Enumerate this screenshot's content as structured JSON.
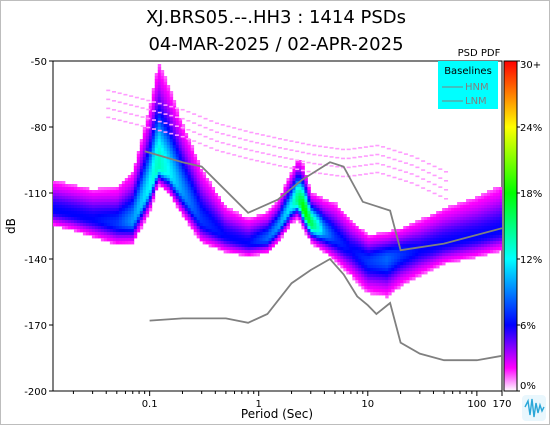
{
  "title_line1": "XJ.BRS05.--.HH3 : 1414 PSDs",
  "title_line2": "04-MAR-2025 / 02-APR-2025",
  "chart_data": {
    "type": "heatmap",
    "xlabel": "Period (Sec)",
    "ylabel": "dB",
    "x_scale": "log",
    "xlim": [
      0.013,
      170
    ],
    "ylim": [
      -200,
      -50
    ],
    "x_ticks": [
      "0.1",
      "1",
      "10",
      "100",
      "170"
    ],
    "x_tick_values": [
      0.1,
      1,
      10,
      100,
      170
    ],
    "y_ticks": [
      "-50",
      "-80",
      "-110",
      "-140",
      "-170",
      "-200"
    ],
    "y_tick_values": [
      -50,
      -80,
      -110,
      -140,
      -170,
      -200
    ],
    "grid": false,
    "colorbar": {
      "title": "PSD PDF",
      "tick_labels": [
        "30+",
        "24%",
        "18%",
        "12%",
        "6%",
        "0%"
      ],
      "tick_values": [
        30,
        24,
        18,
        12,
        6,
        0
      ],
      "colors": [
        "#ff0000",
        "#ff7f00",
        "#ffff00",
        "#00ff00",
        "#00ffff",
        "#0000ff",
        "#ff00ff",
        "#ffffff"
      ]
    },
    "legend": {
      "title": "Baselines",
      "position": "top-right",
      "background": "#00ffff",
      "entries": [
        "HNM",
        "LNM"
      ]
    },
    "series": [
      {
        "name": "HNM",
        "color": "#808080",
        "x": [
          0.09,
          0.2,
          0.3,
          0.8,
          1.5,
          2.5,
          4.5,
          6,
          9,
          12,
          16,
          20,
          50,
          170
        ],
        "y": [
          -91,
          -96,
          -98,
          -119,
          -113,
          -104,
          -96,
          -98,
          -114,
          -116,
          -118,
          -136,
          -133,
          -126
        ]
      },
      {
        "name": "LNM",
        "color": "#808080",
        "x": [
          0.1,
          0.2,
          0.5,
          0.8,
          1.2,
          2,
          3,
          4.5,
          6,
          8,
          10,
          12,
          16,
          20,
          30,
          50,
          100,
          170
        ],
        "y": [
          -168,
          -167,
          -167,
          -169,
          -165,
          -151,
          -145,
          -140,
          -147,
          -157,
          -161,
          -165,
          -160,
          -178,
          -183,
          -186,
          -186,
          -184
        ]
      }
    ],
    "density": {
      "mode_curve": {
        "x": [
          0.013,
          0.02,
          0.03,
          0.05,
          0.07,
          0.1,
          0.12,
          0.15,
          0.2,
          0.3,
          0.5,
          0.8,
          1.2,
          1.5,
          2,
          2.3,
          2.6,
          3,
          4,
          5,
          7,
          10,
          15,
          20,
          30,
          50,
          100,
          170
        ],
        "y": [
          -118,
          -120,
          -122,
          -124,
          -123,
          -108,
          -98,
          -101,
          -110,
          -123,
          -130,
          -133,
          -131,
          -126,
          -116,
          -113,
          -118,
          -124,
          -128,
          -131,
          -136,
          -141,
          -140,
          -138,
          -136,
          -133,
          -130,
          -127
        ]
      },
      "upper_spread_db": [
        12,
        12,
        12,
        14,
        18,
        28,
        35,
        30,
        25,
        20,
        12,
        10,
        10,
        10,
        12,
        14,
        14,
        10,
        12,
        14,
        12,
        10,
        10,
        10,
        12,
        14,
        16,
        18
      ],
      "lower_spread_db": [
        6,
        6,
        7,
        8,
        8,
        8,
        6,
        7,
        8,
        8,
        6,
        5,
        5,
        5,
        6,
        6,
        6,
        6,
        7,
        8,
        10,
        12,
        14,
        12,
        10,
        8,
        8,
        8
      ],
      "peak_percent": [
        5,
        5,
        5,
        6,
        8,
        10,
        12,
        10,
        8,
        6,
        5,
        5,
        7,
        8,
        10,
        14,
        18,
        15,
        8,
        6,
        5,
        6,
        7,
        6,
        5,
        5,
        5,
        5
      ],
      "outlier_x": [
        0.04,
        0.07,
        0.1,
        0.2,
        0.4,
        0.8,
        1.5,
        3,
        6,
        12,
        25,
        50
      ],
      "outlier_y": [
        -63,
        -66,
        -68,
        -72,
        -78,
        -82,
        -85,
        -88,
        -90,
        -88,
        -93,
        -100
      ]
    }
  }
}
